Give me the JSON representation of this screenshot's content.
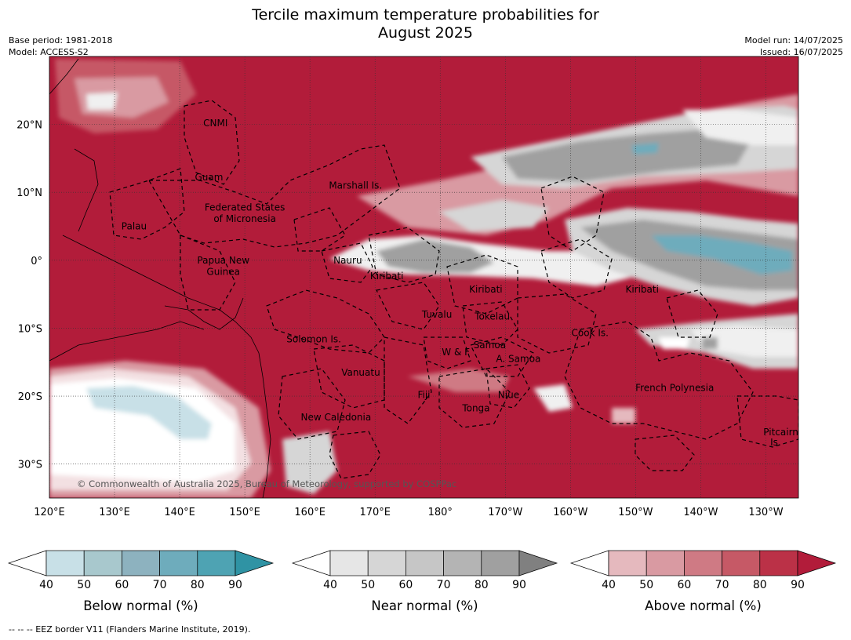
{
  "title_line1": "Tercile maximum temperature probabilities for",
  "title_line2": "August 2025",
  "meta_left": [
    "Base period: 1981-2018",
    "Model: ACCESS-S2"
  ],
  "meta_right": [
    "Model run: 14/07/2025",
    "Issued: 16/07/2025"
  ],
  "map": {
    "lon_range": [
      120,
      235
    ],
    "lat_range": [
      -35,
      30
    ],
    "x_ticks": [
      {
        "lon": 120,
        "label": "120°E"
      },
      {
        "lon": 130,
        "label": "130°E"
      },
      {
        "lon": 140,
        "label": "140°E"
      },
      {
        "lon": 150,
        "label": "150°E"
      },
      {
        "lon": 160,
        "label": "160°E"
      },
      {
        "lon": 170,
        "label": "170°E"
      },
      {
        "lon": 180,
        "label": "180°"
      },
      {
        "lon": 190,
        "label": "170°W"
      },
      {
        "lon": 200,
        "label": "160°W"
      },
      {
        "lon": 210,
        "label": "150°W"
      },
      {
        "lon": 220,
        "label": "140°W"
      },
      {
        "lon": 230,
        "label": "130°W"
      }
    ],
    "y_ticks": [
      {
        "lat": 20,
        "label": "20°N"
      },
      {
        "lat": 10,
        "label": "10°N"
      },
      {
        "lat": 0,
        "label": "0°"
      },
      {
        "lat": -10,
        "label": "10°S"
      },
      {
        "lat": -20,
        "label": "20°S"
      },
      {
        "lat": -30,
        "label": "30°S"
      }
    ],
    "places": [
      {
        "name": "CNMI",
        "lon": 145.5,
        "lat": 20.2
      },
      {
        "name": "Guam",
        "lon": 144.5,
        "lat": 12.2
      },
      {
        "name": "Marshall Is.",
        "lon": 167.0,
        "lat": 11.0
      },
      {
        "name": "Federated States",
        "lon": 150.0,
        "lat": 7.8
      },
      {
        "name": "of Micronesia",
        "lon": 150.0,
        "lat": 6.1
      },
      {
        "name": "Palau",
        "lon": 133.0,
        "lat": 5.0
      },
      {
        "name": "Papua New",
        "lon": 146.7,
        "lat": 0.0
      },
      {
        "name": "Guinea",
        "lon": 146.7,
        "lat": -1.7
      },
      {
        "name": "Nauru",
        "lon": 165.8,
        "lat": 0.0
      },
      {
        "name": "Kiribati",
        "lon": 171.8,
        "lat": -2.3
      },
      {
        "name": "Kiribati",
        "lon": 187.0,
        "lat": -4.3
      },
      {
        "name": "Kiribati",
        "lon": 211.0,
        "lat": -4.3
      },
      {
        "name": "Tuvalu",
        "lon": 179.5,
        "lat": -8.0
      },
      {
        "name": "Tokelau",
        "lon": 188.0,
        "lat": -8.3
      },
      {
        "name": "Cook Is.",
        "lon": 203.0,
        "lat": -10.7
      },
      {
        "name": "Solomon Is.",
        "lon": 160.6,
        "lat": -11.6
      },
      {
        "name": "Samoa",
        "lon": 187.6,
        "lat": -12.5
      },
      {
        "name": "W & F",
        "lon": 182.4,
        "lat": -13.5
      },
      {
        "name": "A. Samoa",
        "lon": 192.0,
        "lat": -14.5
      },
      {
        "name": "Vanuatu",
        "lon": 167.8,
        "lat": -16.5
      },
      {
        "name": "French Polynesia",
        "lon": 216.0,
        "lat": -18.8
      },
      {
        "name": "Fiji",
        "lon": 177.5,
        "lat": -19.8
      },
      {
        "name": "Niue",
        "lon": 190.5,
        "lat": -19.8
      },
      {
        "name": "Tonga",
        "lon": 185.5,
        "lat": -21.8
      },
      {
        "name": "New Caledonia",
        "lon": 164.0,
        "lat": -23.1
      },
      {
        "name": "Pitcairn",
        "lon": 232.3,
        "lat": -25.3
      },
      {
        "name": "Is.",
        "lon": 231.5,
        "lat": -26.8
      }
    ],
    "copyright": "© Commonwealth of Australia 2025, Bureau of Meteorology, supported by COSPPac"
  },
  "colorbars": [
    {
      "label": "Below normal (%)",
      "ticks": [
        "40",
        "50",
        "60",
        "70",
        "80",
        "90"
      ],
      "colors": [
        "#c8e0e7",
        "#a8c8cd",
        "#8db2bf",
        "#6eacbc",
        "#4ea3b3"
      ],
      "extend_color": "#2f93a4"
    },
    {
      "label": "Near normal (%)",
      "ticks": [
        "40",
        "50",
        "60",
        "70",
        "80",
        "90"
      ],
      "colors": [
        "#e6e6e6",
        "#d6d6d6",
        "#c6c6c6",
        "#b4b4b4",
        "#a0a0a0"
      ],
      "extend_color": "#808080"
    },
    {
      "label": "Above normal (%)",
      "ticks": [
        "40",
        "50",
        "60",
        "70",
        "80",
        "90"
      ],
      "colors": [
        "#e5b9be",
        "#d99aa2",
        "#cf7a84",
        "#c65966",
        "#bb3147"
      ],
      "extend_color": "#b21c3a"
    }
  ],
  "footer": "--  --  -- EEZ border V11 (Flanders Marine Institute, 2019)."
}
